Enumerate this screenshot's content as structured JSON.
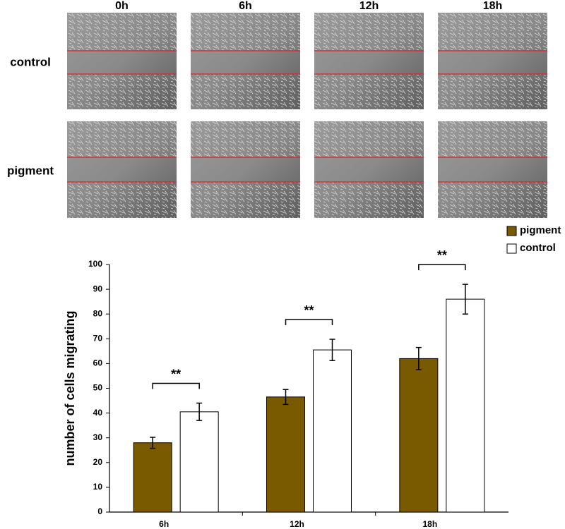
{
  "panel": {
    "columns": [
      "0h",
      "6h",
      "12h",
      "18h"
    ],
    "rows": [
      "control",
      "pigment"
    ]
  },
  "chart_data": {
    "type": "bar",
    "y_label": "number of cells migrating",
    "categories": [
      "6h",
      "12h",
      "18h"
    ],
    "series": [
      {
        "name": "pigment",
        "color": "#7a5a00",
        "values": [
          28,
          46.5,
          62
        ],
        "errors": [
          2.2,
          3,
          4.5
        ]
      },
      {
        "name": "control",
        "color": "#ffffff",
        "values": [
          40.5,
          65.5,
          86
        ],
        "errors": [
          3.5,
          4.3,
          6
        ]
      }
    ],
    "annotations": [
      "**",
      "**",
      "**"
    ],
    "ylim": [
      0,
      100
    ],
    "yticks": [
      0,
      10,
      20,
      30,
      40,
      50,
      60,
      70,
      80,
      90,
      100
    ],
    "legend": "top-right"
  }
}
